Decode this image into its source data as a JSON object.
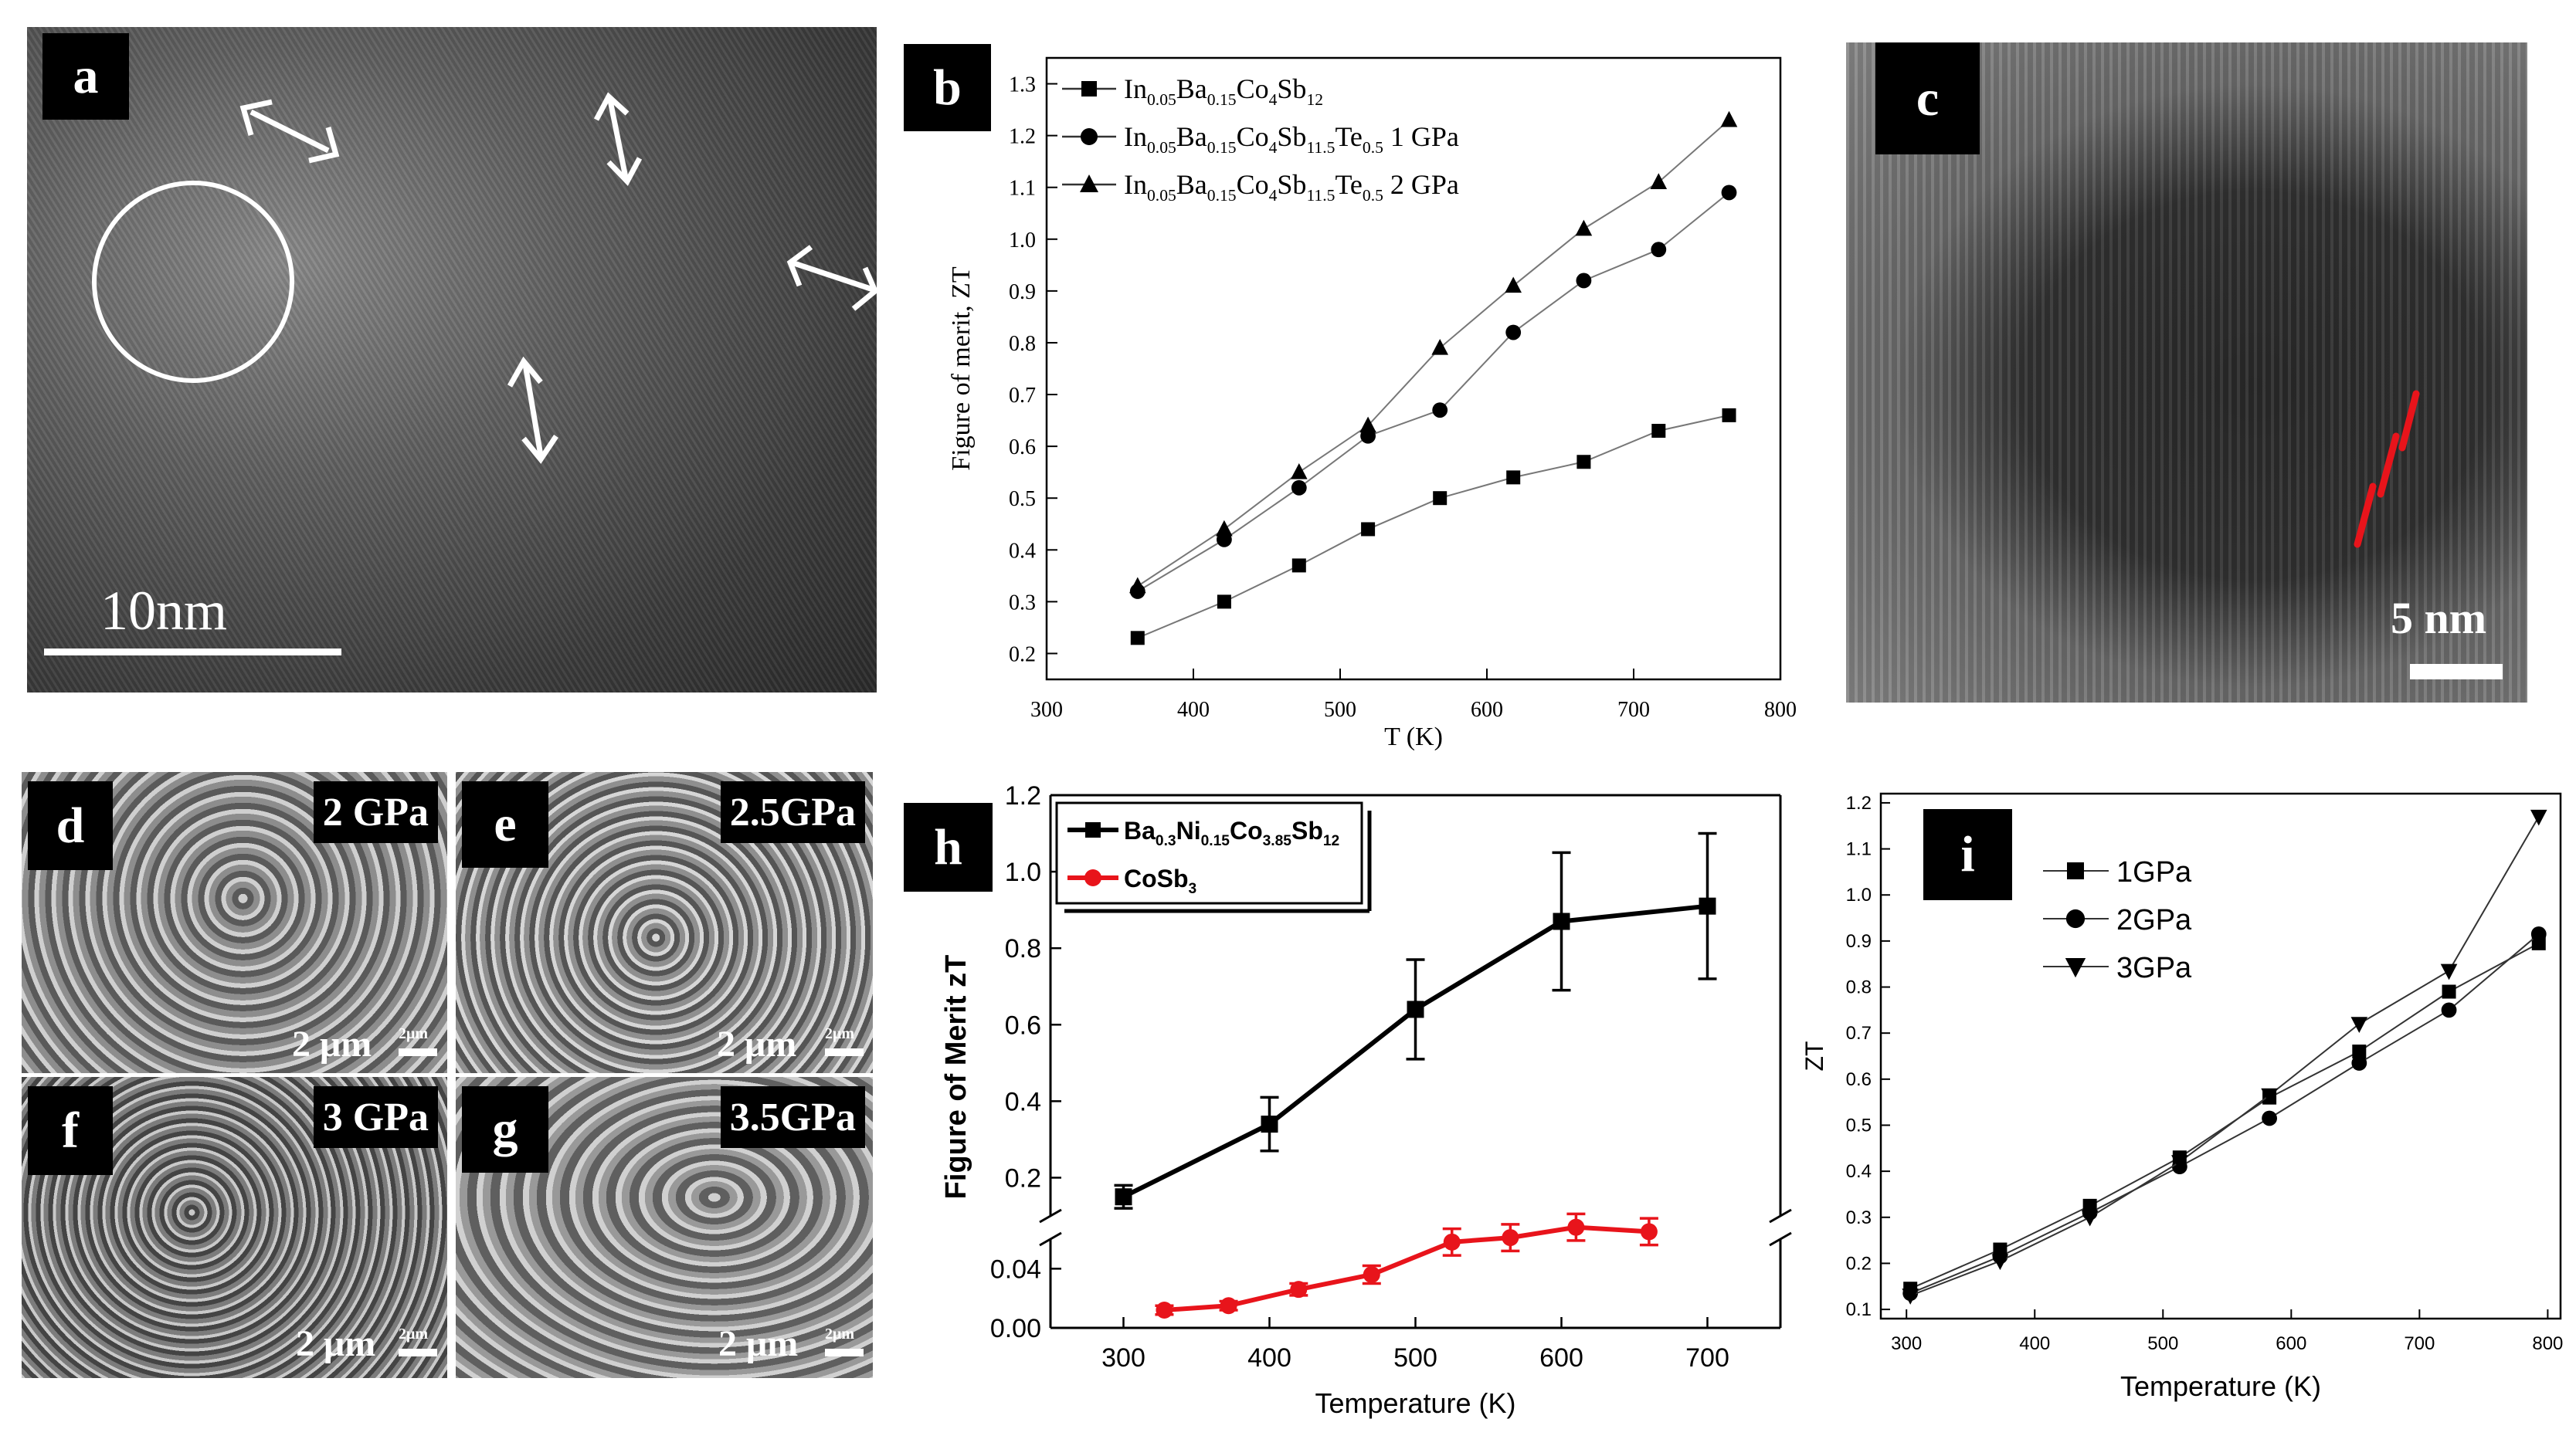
{
  "panels": {
    "a": {
      "label": "a",
      "scale": "10nm"
    },
    "c": {
      "label": "c",
      "scale": "5 nm"
    },
    "d": {
      "label": "d",
      "pressure": "2 GPa",
      "scale": "2 μm",
      "mini": "2μm"
    },
    "e": {
      "label": "e",
      "pressure": "2.5GPa",
      "scale": "2 μm",
      "mini": "2μm"
    },
    "f": {
      "label": "f",
      "pressure": "3 GPa",
      "scale": "2 μm",
      "mini": "2μm"
    },
    "g": {
      "label": "g",
      "pressure": "3.5GPa",
      "scale": "2 μm",
      "mini": "2μm"
    }
  },
  "chart_data": [
    {
      "id": "b",
      "label": "b",
      "type": "line",
      "xlabel": "T (K)",
      "ylabel": "Figure of merit, ZT",
      "xlim": [
        300,
        800
      ],
      "ylim": [
        0.15,
        1.35
      ],
      "xticks": [
        "300",
        "400",
        "500",
        "600",
        "700",
        "800"
      ],
      "yticks": [
        "0.2",
        "0.3",
        "0.4",
        "0.5",
        "0.6",
        "0.7",
        "0.8",
        "0.9",
        "1.0",
        "1.1",
        "1.2",
        "1.3"
      ],
      "series": [
        {
          "name": "In0.05Ba0.15Co4Sb12",
          "marker": "square",
          "x": [
            362,
            421,
            472,
            519,
            568,
            618,
            666,
            717,
            765
          ],
          "y": [
            0.23,
            0.3,
            0.37,
            0.44,
            0.5,
            0.54,
            0.57,
            0.63,
            0.66
          ]
        },
        {
          "name": "In0.05Ba0.15Co4Sb11.5Te0.5 1 GPa",
          "marker": "circle",
          "x": [
            362,
            421,
            472,
            519,
            568,
            618,
            666,
            717,
            765
          ],
          "y": [
            0.32,
            0.42,
            0.52,
            0.62,
            0.67,
            0.82,
            0.92,
            0.98,
            1.09
          ]
        },
        {
          "name": "In0.05Ba0.15Co4Sb11.5Te0.5 2 GPa",
          "marker": "triangle",
          "x": [
            362,
            421,
            472,
            519,
            568,
            618,
            666,
            717,
            765
          ],
          "y": [
            0.33,
            0.44,
            0.55,
            0.64,
            0.79,
            0.91,
            1.02,
            1.11,
            1.23
          ]
        }
      ]
    },
    {
      "id": "h",
      "label": "h",
      "type": "line",
      "xlabel": "Temperature (K)",
      "ylabel": "Figure of Merit zT",
      "xlim": [
        250,
        750
      ],
      "ylim_upper": [
        0.1,
        1.2
      ],
      "ylim_lower": [
        0.0,
        0.06
      ],
      "xticks": [
        "300",
        "400",
        "500",
        "600",
        "700"
      ],
      "yticks_upper": [
        "0.2",
        "0.4",
        "0.6",
        "0.8",
        "1.0",
        "1.2"
      ],
      "yticks_lower": [
        "0.00",
        "0.04"
      ],
      "series": [
        {
          "name": "Ba0.3Ni0.15Co3.85Sb12",
          "color": "#000000",
          "x": [
            300,
            400,
            500,
            600,
            700
          ],
          "y": [
            0.15,
            0.34,
            0.64,
            0.87,
            0.91
          ],
          "err": [
            0.03,
            0.07,
            0.13,
            0.18,
            0.19
          ]
        },
        {
          "name": "CoSb3",
          "color": "#e8141b",
          "x": [
            328,
            372,
            420,
            470,
            525,
            565,
            610,
            660
          ],
          "y": [
            0.012,
            0.015,
            0.026,
            0.036,
            0.058,
            0.061,
            0.068,
            0.065
          ],
          "err": [
            0.003,
            0.003,
            0.004,
            0.006,
            0.009,
            0.009,
            0.009,
            0.009
          ]
        }
      ]
    },
    {
      "id": "i",
      "label": "i",
      "type": "line",
      "xlabel": "Temperature (K)",
      "ylabel": "ZT",
      "xlim": [
        280,
        810
      ],
      "ylim": [
        0.08,
        1.22
      ],
      "xticks": [
        "300",
        "400",
        "500",
        "600",
        "700",
        "800"
      ],
      "yticks": [
        "0.1",
        "0.2",
        "0.3",
        "0.4",
        "0.5",
        "0.6",
        "0.7",
        "0.8",
        "0.9",
        "1.0",
        "1.1",
        "1.2"
      ],
      "series": [
        {
          "name": "1GPa",
          "marker": "square",
          "x": [
            303,
            373,
            443,
            513,
            583,
            653,
            723,
            793
          ],
          "y": [
            0.145,
            0.23,
            0.325,
            0.43,
            0.56,
            0.66,
            0.79,
            0.895
          ]
        },
        {
          "name": "2GPa",
          "marker": "circle",
          "x": [
            303,
            373,
            443,
            513,
            583,
            653,
            723,
            793
          ],
          "y": [
            0.135,
            0.215,
            0.31,
            0.41,
            0.515,
            0.635,
            0.75,
            0.915
          ]
        },
        {
          "name": "3GPa",
          "marker": "triangle-down",
          "x": [
            303,
            373,
            443,
            513,
            583,
            653,
            723,
            793
          ],
          "y": [
            0.13,
            0.205,
            0.3,
            0.42,
            0.565,
            0.72,
            0.835,
            1.17
          ]
        }
      ]
    }
  ]
}
